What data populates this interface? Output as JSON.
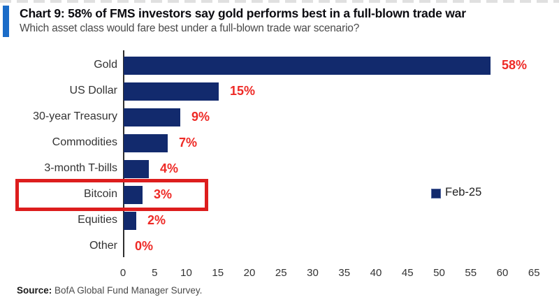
{
  "header": {
    "title": "Chart 9: 58% of FMS investors say gold performs best in a full-blown trade war",
    "subtitle": "Which asset class would fare best under a full-blown trade war scenario?",
    "accent_color": "#1b6cc8"
  },
  "chart_data": {
    "type": "bar",
    "orientation": "horizontal",
    "title": "Chart 9: 58% of FMS investors say gold performs best in a full-blown trade war",
    "subtitle": "Which asset class would fare best under a full-blown trade war scenario?",
    "categories": [
      "Gold",
      "US Dollar",
      "30-year Treasury",
      "Commodities",
      "3-month T-bills",
      "Bitcoin",
      "Equities",
      "Other"
    ],
    "values": [
      58,
      15,
      9,
      7,
      4,
      3,
      2,
      0
    ],
    "value_labels": [
      "58%",
      "15%",
      "9%",
      "7%",
      "4%",
      "3%",
      "2%",
      "0%"
    ],
    "series": [
      {
        "name": "Feb-25",
        "values": [
          58,
          15,
          9,
          7,
          4,
          3,
          2,
          0
        ]
      }
    ],
    "xlim": [
      0,
      65
    ],
    "xticks": [
      0,
      5,
      10,
      15,
      20,
      25,
      30,
      35,
      40,
      45,
      50,
      55,
      60,
      65
    ],
    "grid": false,
    "bar_color": "#122a6d",
    "value_label_color": "#ee2a26",
    "highlight_category": "Bitcoin",
    "highlight_box_color": "#dd1d1d",
    "legend": {
      "label": "Feb-25",
      "position": "right-middle",
      "swatch_color": "#122a6d"
    }
  },
  "footer": {
    "source_label": "Source:",
    "source_text": " BofA Global Fund Manager Survey."
  }
}
